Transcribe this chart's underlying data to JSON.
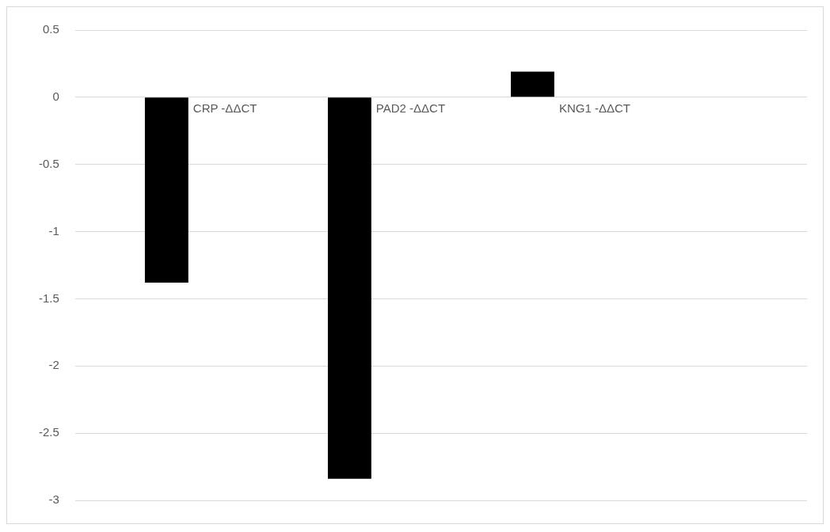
{
  "chart_data": {
    "type": "bar",
    "categories": [
      "CRP -ΔΔCT",
      "PAD2 -ΔΔCT",
      "KNG1 -ΔΔCT",
      null
    ],
    "values": [
      -1.38,
      -2.84,
      0.19,
      null
    ],
    "color": "#000000",
    "ylim": [
      -3,
      0.5
    ],
    "yticks": [
      -3,
      -2.5,
      -2,
      -1.5,
      -1,
      -0.5,
      0,
      0.5
    ],
    "grid": "y"
  }
}
